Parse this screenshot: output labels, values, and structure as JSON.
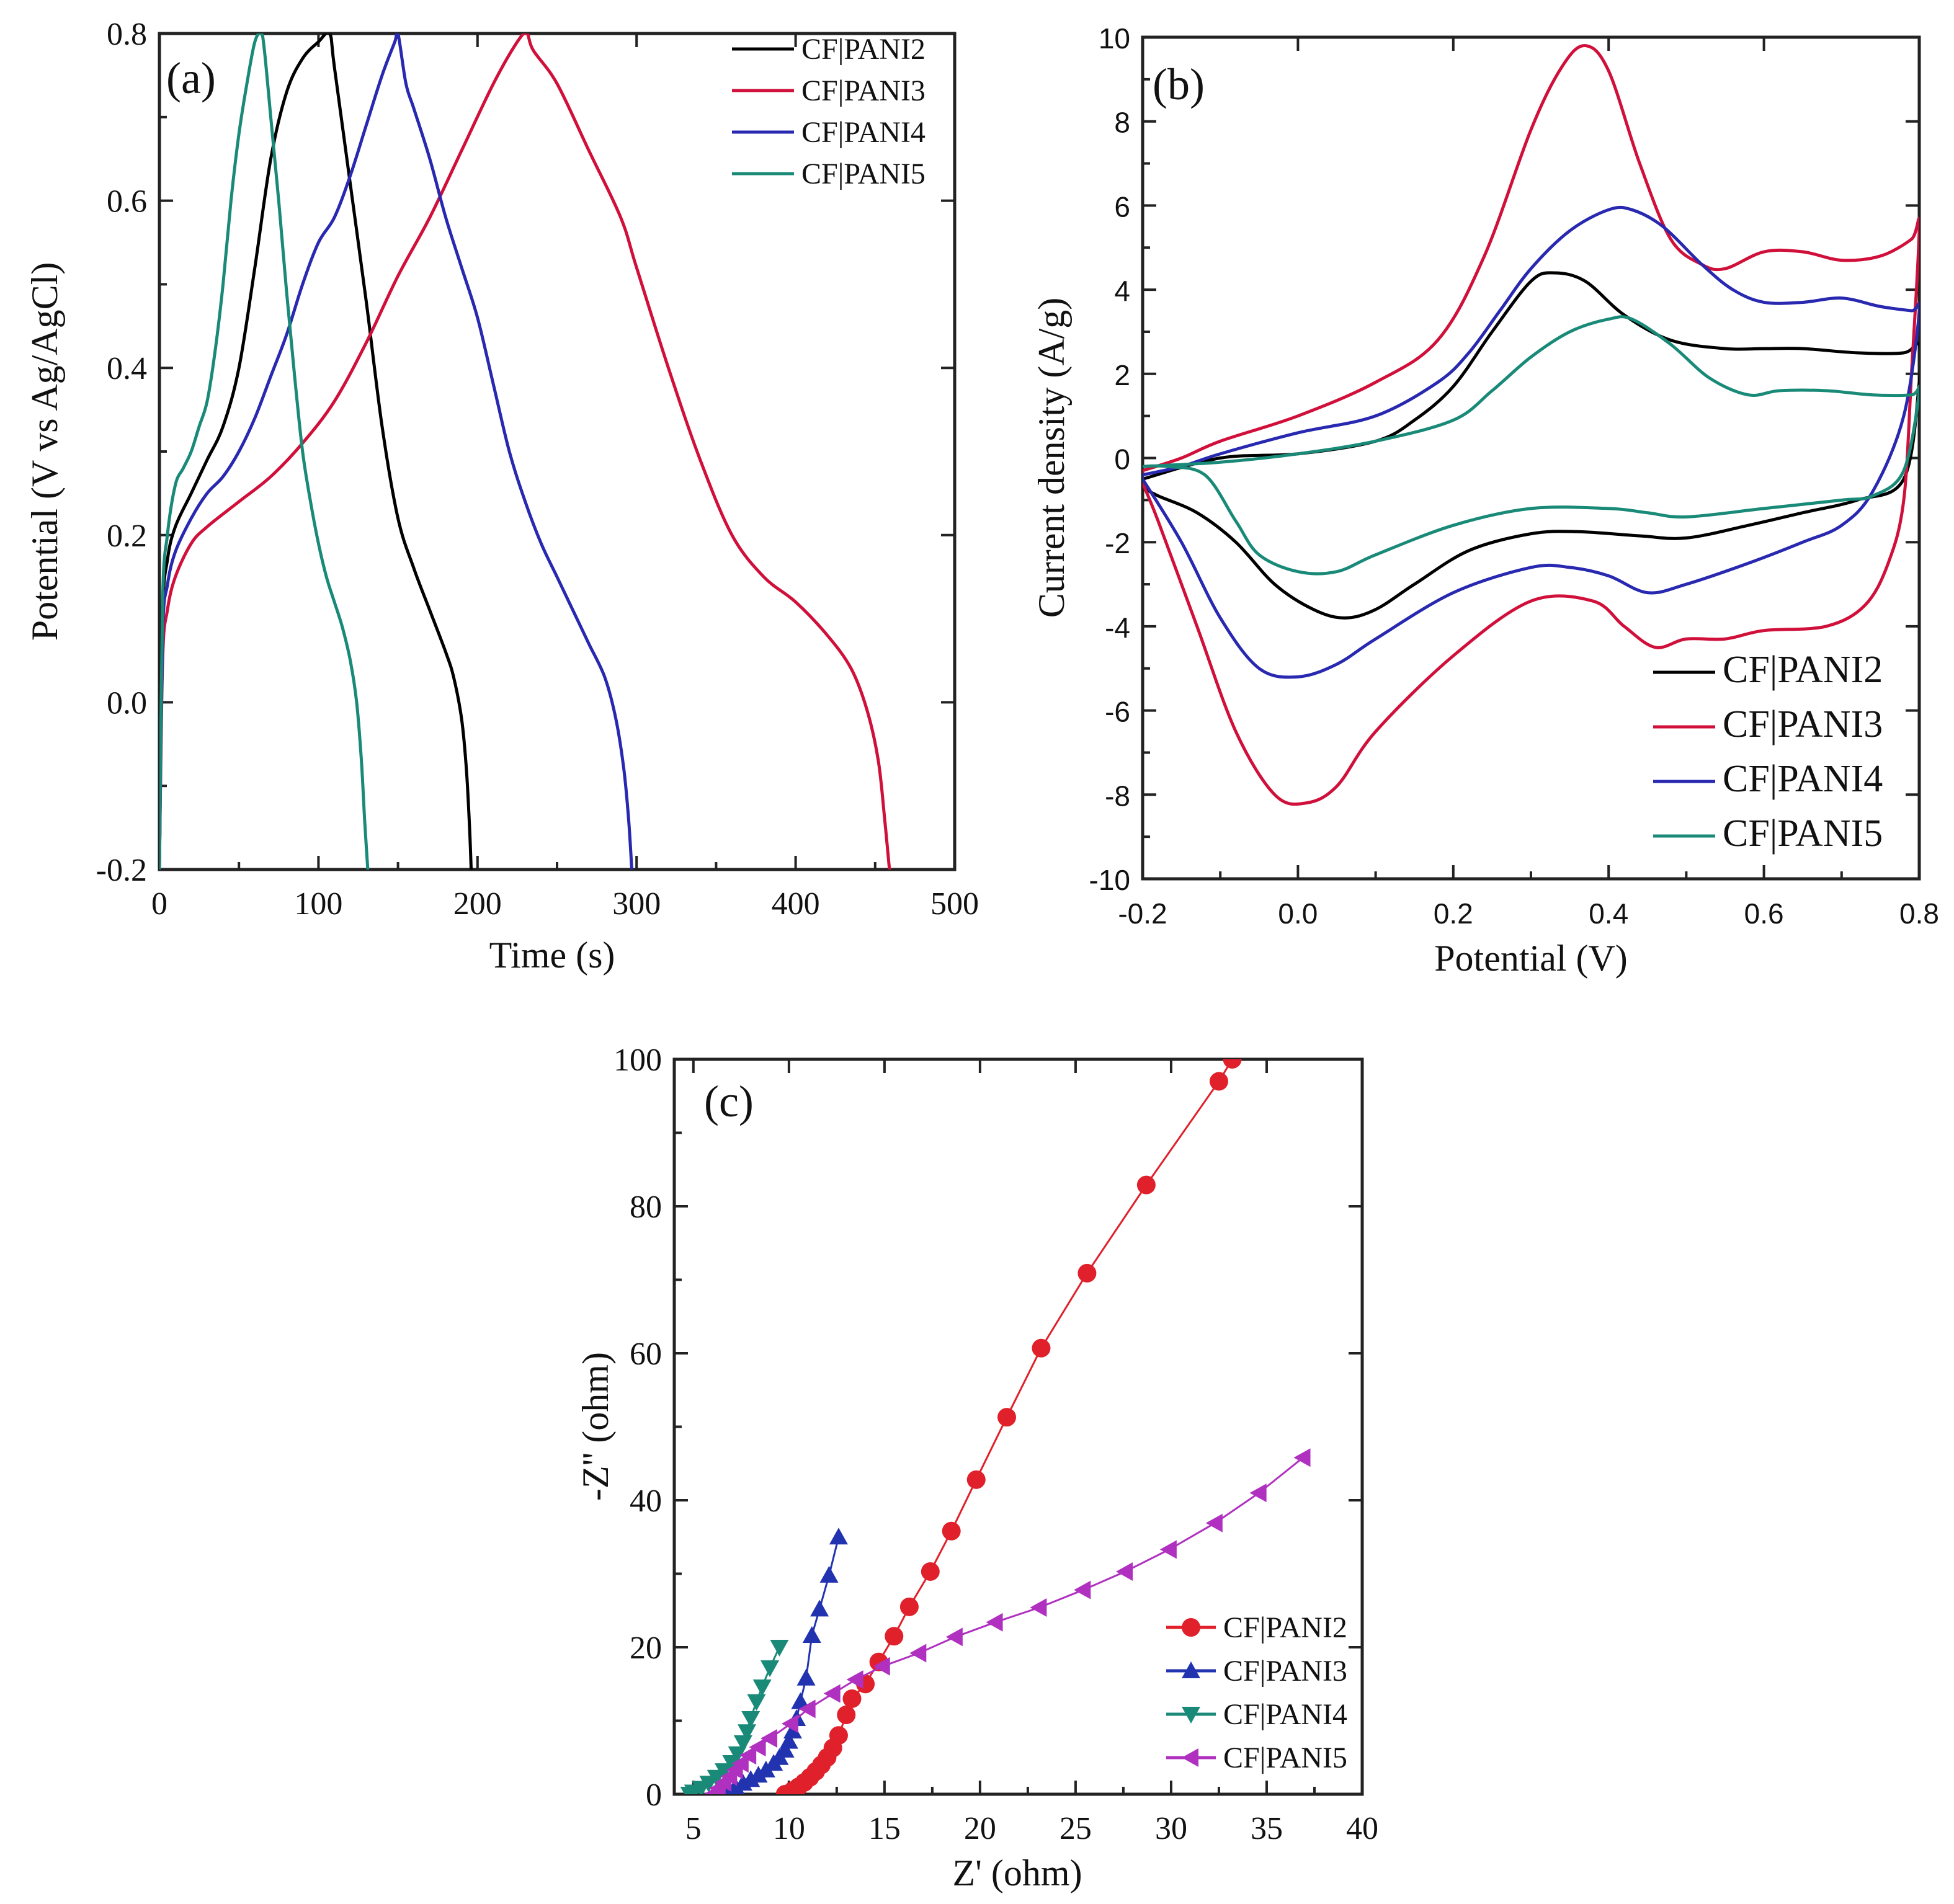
{
  "chart_data": [
    {
      "panel": "(a)",
      "type": "line",
      "title": "",
      "xlabel": "Time (s)",
      "ylabel": "Potential (V vs Ag/AgCl)",
      "xlim": [
        0,
        500
      ],
      "ylim": [
        -0.2,
        0.8
      ],
      "xticks": [
        "0",
        "100",
        "200",
        "300",
        "400",
        "500"
      ],
      "yticks": [
        "-0.2",
        "0.0",
        "0.2",
        "0.4",
        "0.6",
        "0.8"
      ],
      "grid": false,
      "legend_position": "top-right",
      "series": [
        {
          "name": "CF|PANI2",
          "color": "#000000",
          "x": [
            0,
            2,
            5,
            10,
            20,
            30,
            40,
            50,
            60,
            70,
            80,
            90,
            100,
            107,
            110,
            120,
            130,
            140,
            150,
            160,
            170,
            180,
            185,
            190,
            193,
            195,
            196
          ],
          "y": [
            -0.2,
            0.1,
            0.17,
            0.21,
            0.25,
            0.29,
            0.33,
            0.4,
            0.52,
            0.65,
            0.73,
            0.77,
            0.79,
            0.8,
            0.76,
            0.62,
            0.48,
            0.33,
            0.22,
            0.16,
            0.11,
            0.06,
            0.03,
            -0.02,
            -0.08,
            -0.15,
            -0.2
          ]
        },
        {
          "name": "CF|PANI3",
          "color": "#d0103a",
          "x": [
            0,
            2,
            5,
            10,
            20,
            30,
            50,
            70,
            90,
            110,
            130,
            150,
            170,
            190,
            210,
            225,
            231,
            235,
            250,
            270,
            290,
            300,
            320,
            340,
            360,
            380,
            400,
            420,
            435,
            445,
            452,
            456,
            459
          ],
          "y": [
            -0.2,
            0.05,
            0.11,
            0.15,
            0.19,
            0.21,
            0.24,
            0.27,
            0.31,
            0.36,
            0.43,
            0.51,
            0.58,
            0.66,
            0.74,
            0.79,
            0.8,
            0.78,
            0.74,
            0.66,
            0.58,
            0.52,
            0.4,
            0.29,
            0.2,
            0.15,
            0.12,
            0.08,
            0.04,
            -0.01,
            -0.07,
            -0.14,
            -0.2
          ]
        },
        {
          "name": "CF|PANI4",
          "color": "#2828b0",
          "x": [
            0,
            2,
            5,
            10,
            20,
            30,
            40,
            50,
            60,
            70,
            80,
            90,
            100,
            110,
            120,
            130,
            140,
            148,
            150,
            155,
            160,
            170,
            180,
            190,
            200,
            210,
            220,
            230,
            240,
            250,
            260,
            270,
            280,
            287,
            292,
            295,
            297
          ],
          "y": [
            -0.2,
            0.08,
            0.14,
            0.18,
            0.22,
            0.25,
            0.27,
            0.3,
            0.34,
            0.39,
            0.44,
            0.5,
            0.55,
            0.58,
            0.63,
            0.69,
            0.75,
            0.79,
            0.8,
            0.74,
            0.71,
            0.65,
            0.58,
            0.52,
            0.46,
            0.38,
            0.3,
            0.24,
            0.19,
            0.15,
            0.11,
            0.07,
            0.03,
            -0.02,
            -0.08,
            -0.14,
            -0.2
          ]
        },
        {
          "name": "CF|PANI5",
          "color": "#1a8a78",
          "x": [
            0,
            2,
            5,
            10,
            15,
            20,
            25,
            30,
            35,
            40,
            45,
            50,
            55,
            60,
            64,
            66,
            70,
            75,
            80,
            85,
            90,
            95,
            100,
            105,
            110,
            115,
            120,
            124,
            127,
            129,
            131
          ],
          "y": [
            -0.2,
            0.12,
            0.2,
            0.26,
            0.28,
            0.3,
            0.33,
            0.36,
            0.42,
            0.5,
            0.6,
            0.68,
            0.74,
            0.79,
            0.8,
            0.78,
            0.7,
            0.6,
            0.49,
            0.39,
            0.3,
            0.24,
            0.19,
            0.15,
            0.12,
            0.09,
            0.05,
            0.0,
            -0.07,
            -0.14,
            -0.2
          ]
        }
      ]
    },
    {
      "panel": "(b)",
      "type": "line",
      "title": "",
      "xlabel": "Potential (V)",
      "ylabel": "Current density (A/g)",
      "xlim": [
        -0.2,
        0.8
      ],
      "ylim": [
        -10,
        10
      ],
      "xticks": [
        "-0.2",
        "0.0",
        "0.2",
        "0.4",
        "0.6",
        "0.8"
      ],
      "yticks": [
        "-10",
        "-8",
        "-6",
        "-4",
        "-2",
        "0",
        "2",
        "4",
        "6",
        "8",
        "10"
      ],
      "grid": false,
      "legend_position": "bottom-right",
      "series": [
        {
          "name": "CF|PANI2",
          "color": "#000000",
          "x": [
            -0.2,
            -0.1,
            0.0,
            0.1,
            0.15,
            0.2,
            0.25,
            0.3,
            0.33,
            0.37,
            0.42,
            0.48,
            0.55,
            0.6,
            0.65,
            0.72,
            0.78,
            0.8,
            0.8,
            0.78,
            0.72,
            0.65,
            0.58,
            0.5,
            0.44,
            0.36,
            0.3,
            0.22,
            0.15,
            0.1,
            0.06,
            0.02,
            -0.03,
            -0.08,
            -0.13,
            -0.18,
            -0.2
          ],
          "y": [
            -0.5,
            0.0,
            0.1,
            0.4,
            0.9,
            1.7,
            3.0,
            4.2,
            4.4,
            4.2,
            3.4,
            2.8,
            2.6,
            2.6,
            2.6,
            2.5,
            2.5,
            2.7,
            1.8,
            -0.5,
            -1.0,
            -1.3,
            -1.6,
            -1.9,
            -1.85,
            -1.75,
            -1.8,
            -2.2,
            -3.0,
            -3.6,
            -3.8,
            -3.6,
            -3.0,
            -2.0,
            -1.3,
            -0.9,
            -0.7
          ]
        },
        {
          "name": "CF|PANI3",
          "color": "#d0103a",
          "x": [
            -0.2,
            -0.15,
            -0.1,
            0.0,
            0.1,
            0.18,
            0.24,
            0.3,
            0.34,
            0.37,
            0.4,
            0.44,
            0.48,
            0.52,
            0.55,
            0.6,
            0.65,
            0.7,
            0.75,
            0.79,
            0.8,
            0.79,
            0.78,
            0.76,
            0.73,
            0.68,
            0.6,
            0.55,
            0.5,
            0.46,
            0.42,
            0.38,
            0.3,
            0.2,
            0.1,
            0.05,
            0.01,
            -0.03,
            -0.08,
            -0.13,
            -0.18,
            -0.2
          ],
          "y": [
            -0.3,
            0.0,
            0.4,
            1.0,
            1.8,
            2.8,
            4.8,
            7.8,
            9.3,
            9.8,
            9.2,
            7.0,
            5.2,
            4.6,
            4.5,
            4.9,
            4.9,
            4.7,
            4.8,
            5.2,
            5.5,
            2.0,
            -1.0,
            -2.5,
            -3.5,
            -4.0,
            -4.1,
            -4.3,
            -4.3,
            -4.5,
            -4.0,
            -3.4,
            -3.4,
            -4.7,
            -6.5,
            -7.8,
            -8.2,
            -8.0,
            -6.5,
            -4.0,
            -1.5,
            -0.6
          ]
        },
        {
          "name": "CF|PANI4",
          "color": "#2828b0",
          "x": [
            -0.2,
            -0.15,
            -0.1,
            0.0,
            0.1,
            0.18,
            0.22,
            0.26,
            0.3,
            0.35,
            0.4,
            0.43,
            0.47,
            0.52,
            0.56,
            0.6,
            0.65,
            0.7,
            0.75,
            0.79,
            0.8,
            0.78,
            0.74,
            0.7,
            0.65,
            0.58,
            0.5,
            0.45,
            0.4,
            0.35,
            0.3,
            0.2,
            0.1,
            0.05,
            0.0,
            -0.05,
            -0.1,
            -0.15,
            -0.2
          ],
          "y": [
            -0.4,
            -0.2,
            0.1,
            0.6,
            1.0,
            1.8,
            2.5,
            3.5,
            4.5,
            5.4,
            5.9,
            5.9,
            5.5,
            4.6,
            4.0,
            3.7,
            3.7,
            3.8,
            3.6,
            3.5,
            3.5,
            1.0,
            -0.8,
            -1.6,
            -2.0,
            -2.5,
            -3.0,
            -3.2,
            -2.8,
            -2.6,
            -2.6,
            -3.2,
            -4.3,
            -4.9,
            -5.2,
            -5.0,
            -3.8,
            -2.0,
            -0.5
          ]
        },
        {
          "name": "CF|PANI5",
          "color": "#1a8a78",
          "x": [
            -0.2,
            -0.1,
            0.0,
            0.1,
            0.2,
            0.25,
            0.3,
            0.35,
            0.4,
            0.43,
            0.48,
            0.53,
            0.58,
            0.62,
            0.68,
            0.74,
            0.79,
            0.8,
            0.78,
            0.74,
            0.7,
            0.6,
            0.5,
            0.45,
            0.4,
            0.3,
            0.2,
            0.1,
            0.05,
            0.0,
            -0.05,
            -0.08,
            -0.12,
            -0.17,
            -0.2
          ],
          "y": [
            -0.2,
            -0.1,
            0.1,
            0.4,
            0.9,
            1.6,
            2.4,
            3.0,
            3.3,
            3.3,
            2.7,
            1.9,
            1.5,
            1.6,
            1.6,
            1.5,
            1.5,
            1.6,
            -0.3,
            -0.9,
            -1.0,
            -1.2,
            -1.4,
            -1.3,
            -1.2,
            -1.2,
            -1.6,
            -2.3,
            -2.7,
            -2.7,
            -2.3,
            -1.5,
            -0.4,
            -0.2,
            -0.2
          ]
        }
      ]
    },
    {
      "panel": "(c)",
      "type": "scatter",
      "title": "",
      "xlabel": "Z' (ohm)",
      "ylabel": "-Z'' (ohm)",
      "xlim": [
        4,
        40
      ],
      "ylim": [
        0,
        100
      ],
      "xticks": [
        "5",
        "10",
        "15",
        "20",
        "25",
        "30",
        "35",
        "40"
      ],
      "yticks": [
        "0",
        "20",
        "40",
        "60",
        "80",
        "100"
      ],
      "grid": false,
      "legend_position": "bottom-right",
      "series": [
        {
          "name": "CF|PANI2",
          "color": "#e0202a",
          "marker": "circle",
          "x": [
            9.8,
            10.2,
            10.5,
            10.8,
            11.1,
            11.4,
            11.7,
            12.0,
            12.3,
            12.6,
            13.0,
            13.3,
            14.0,
            14.7,
            15.5,
            16.3,
            17.4,
            18.5,
            19.8,
            21.4,
            23.2,
            25.6,
            28.7,
            32.5,
            33.2
          ],
          "y": [
            0.0,
            0.5,
            1.0,
            1.6,
            2.3,
            3.1,
            4.0,
            5.0,
            6.3,
            8.0,
            10.8,
            13.0,
            15.0,
            18.0,
            21.5,
            25.5,
            30.3,
            35.8,
            42.8,
            51.3,
            60.7,
            70.9,
            82.9,
            97.0,
            100.0
          ]
        },
        {
          "name": "CF|PANI3",
          "color": "#2233b0",
          "marker": "triangle-up",
          "x": [
            6.4,
            6.8,
            7.2,
            7.6,
            8.0,
            8.4,
            8.8,
            9.2,
            9.5,
            9.8,
            10.0,
            10.2,
            10.4,
            10.6,
            10.9,
            11.2,
            11.6,
            12.1,
            12.6
          ],
          "y": [
            0.0,
            0.5,
            1.0,
            1.5,
            2.0,
            2.6,
            3.3,
            4.2,
            5.0,
            6.0,
            7.2,
            8.6,
            10.3,
            12.6,
            15.8,
            21.6,
            25.2,
            29.8,
            35.0
          ]
        },
        {
          "name": "CF|PANI4",
          "color": "#1a8a78",
          "marker": "triangle-down",
          "x": [
            4.8,
            5.0,
            5.4,
            5.8,
            6.2,
            6.6,
            7.0,
            7.3,
            7.6,
            7.8,
            8.0,
            8.3,
            8.6,
            9.0,
            9.5
          ],
          "y": [
            0.0,
            0.3,
            0.8,
            1.5,
            2.3,
            3.2,
            4.3,
            5.5,
            7.0,
            8.5,
            10.3,
            12.6,
            14.6,
            17.2,
            20.0
          ]
        },
        {
          "name": "CF|PANI5",
          "color": "#b030c0",
          "marker": "triangle-left",
          "x": [
            6.0,
            6.3,
            6.6,
            6.9,
            7.2,
            7.5,
            7.9,
            8.4,
            9.0,
            10.1,
            11.0,
            12.3,
            13.5,
            14.9,
            16.8,
            18.7,
            20.8,
            23.1,
            25.4,
            27.6,
            29.9,
            32.3,
            34.6,
            36.9
          ],
          "y": [
            0.0,
            0.8,
            1.6,
            2.4,
            3.3,
            4.2,
            5.3,
            6.4,
            7.6,
            9.6,
            11.6,
            13.7,
            15.6,
            17.4,
            19.2,
            21.4,
            23.4,
            25.4,
            27.8,
            30.3,
            33.3,
            36.9,
            41.0,
            45.8
          ]
        }
      ]
    }
  ]
}
